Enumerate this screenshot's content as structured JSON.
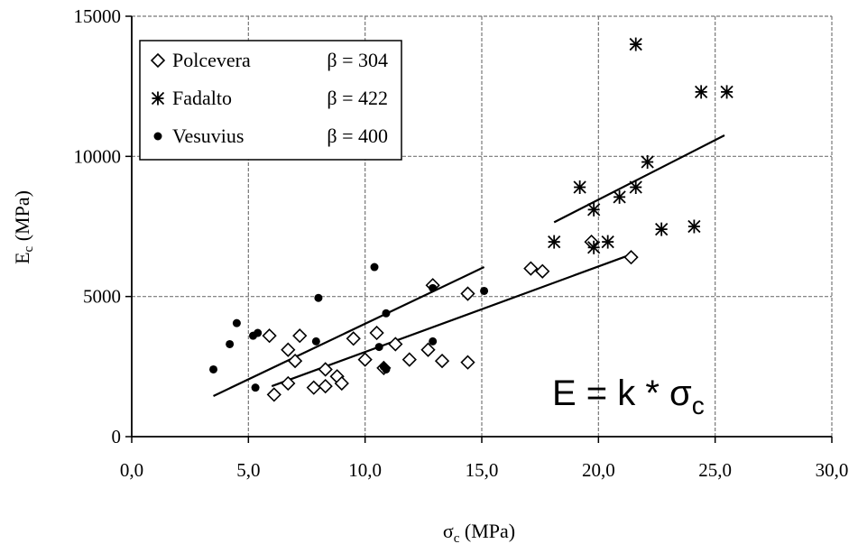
{
  "chart_data": {
    "type": "scatter",
    "xlabel": "σc (MPa)",
    "ylabel": "Ec (MPa)",
    "xlim": [
      0,
      30
    ],
    "ylim": [
      0,
      15000
    ],
    "x_ticks": [
      "0,0",
      "5,0",
      "10,0",
      "15,0",
      "20,0",
      "25,0",
      "30,0"
    ],
    "y_ticks": [
      "0",
      "5000",
      "10000",
      "15000"
    ],
    "grid": true,
    "legend_position": "top-left",
    "annotation": "E = k * σc",
    "series": [
      {
        "name": "Polcevera",
        "beta_label": "β  =  304",
        "marker": "diamond-open",
        "points": [
          [
            5.9,
            3600
          ],
          [
            6.1,
            1500
          ],
          [
            6.7,
            3100
          ],
          [
            6.7,
            1900
          ],
          [
            7.0,
            2700
          ],
          [
            7.2,
            3600
          ],
          [
            7.8,
            1750
          ],
          [
            8.3,
            2400
          ],
          [
            8.3,
            1800
          ],
          [
            8.8,
            2150
          ],
          [
            9.0,
            1900
          ],
          [
            9.5,
            3500
          ],
          [
            10.0,
            2750
          ],
          [
            10.5,
            3700
          ],
          [
            10.8,
            2450
          ],
          [
            11.3,
            3300
          ],
          [
            11.9,
            2750
          ],
          [
            12.7,
            3100
          ],
          [
            12.9,
            5400
          ],
          [
            13.3,
            2700
          ],
          [
            14.4,
            5100
          ],
          [
            14.4,
            2650
          ],
          [
            17.1,
            6000
          ],
          [
            17.6,
            5900
          ],
          [
            19.7,
            6950
          ],
          [
            21.4,
            6400
          ]
        ],
        "fit": [
          [
            6.0,
            1800
          ],
          [
            21.4,
            6500
          ]
        ]
      },
      {
        "name": "Fadalto",
        "beta_label": "β   =  422",
        "marker": "asterisk",
        "points": [
          [
            18.1,
            6950
          ],
          [
            19.2,
            8900
          ],
          [
            19.8,
            8100
          ],
          [
            19.8,
            6750
          ],
          [
            20.4,
            6950
          ],
          [
            20.9,
            8550
          ],
          [
            21.6,
            8900
          ],
          [
            21.6,
            14000
          ],
          [
            22.1,
            9800
          ],
          [
            22.7,
            7400
          ],
          [
            24.1,
            7500
          ],
          [
            24.4,
            12300
          ],
          [
            25.5,
            12300
          ]
        ],
        "fit": [
          [
            18.1,
            7650
          ],
          [
            25.4,
            10750
          ]
        ]
      },
      {
        "name": "Vesuvius",
        "beta_label": "β  =  400",
        "marker": "dot",
        "points": [
          [
            3.5,
            2400
          ],
          [
            4.2,
            3300
          ],
          [
            4.5,
            4050
          ],
          [
            5.2,
            3600
          ],
          [
            5.3,
            1750
          ],
          [
            5.4,
            3700
          ],
          [
            7.9,
            3400
          ],
          [
            8.0,
            4950
          ],
          [
            10.4,
            6050
          ],
          [
            10.6,
            3200
          ],
          [
            10.8,
            2500
          ],
          [
            10.9,
            4400
          ],
          [
            10.9,
            2400
          ],
          [
            12.9,
            3400
          ],
          [
            12.9,
            5300
          ],
          [
            15.1,
            5200
          ]
        ],
        "fit": [
          [
            3.5,
            1450
          ],
          [
            15.1,
            6050
          ]
        ]
      }
    ]
  }
}
